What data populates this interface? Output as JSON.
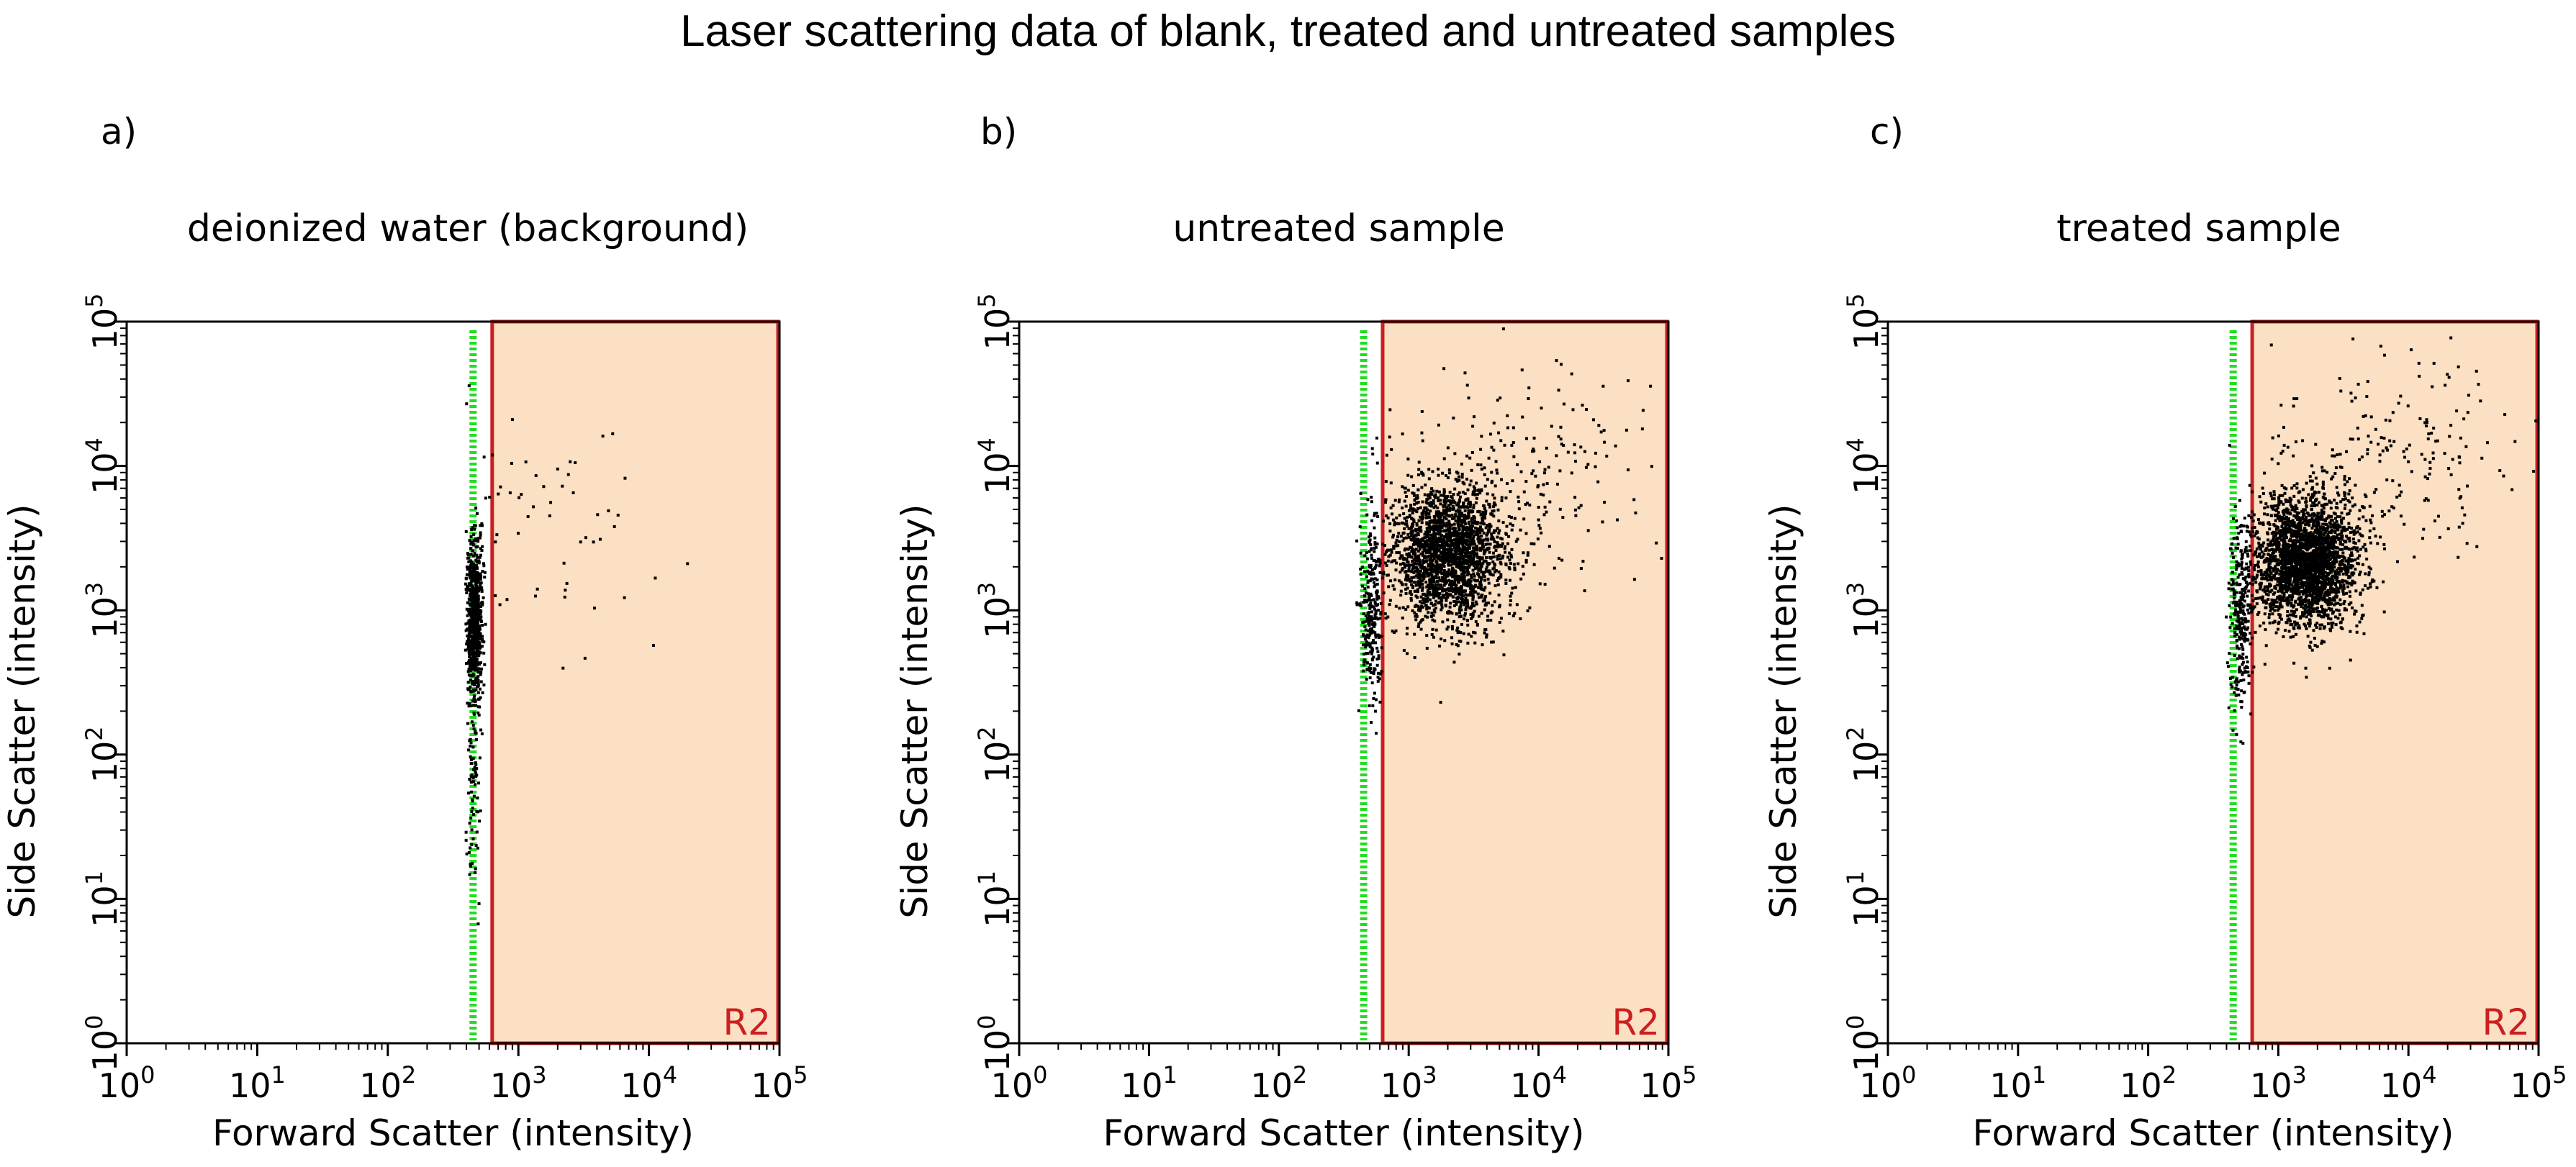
{
  "figure": {
    "title": "Laser scattering data of blank, treated and untreated samples"
  },
  "colors": {
    "gate_fill": "#fbe0c4",
    "gate_stroke": "#cc1f1f",
    "threshold_line": "#22dd22",
    "points": "#000000",
    "axes": "#000000"
  },
  "chart_data": [
    {
      "type": "scatter",
      "panel_label": "a)",
      "title": "deionized water (background)",
      "xlabel": "Forward Scatter (intensity)",
      "ylabel": "Side Scatter (intensity)",
      "x_scale": "log",
      "y_scale": "log",
      "xlim": [
        1,
        100000
      ],
      "ylim": [
        1,
        100000
      ],
      "x_ticks": [
        "10^0",
        "10^1",
        "10^2",
        "10^3",
        "10^4",
        "10^5"
      ],
      "y_ticks": [
        "10^0",
        "10^1",
        "10^2",
        "10^3",
        "10^4",
        "10^5"
      ],
      "grid": false,
      "threshold_x": 450,
      "gate": {
        "name": "R2",
        "x_range": [
          630,
          100000
        ],
        "y_range": [
          1,
          100000
        ]
      },
      "points_summary": "dense column at FSC ~400-600, SSC ~10-2000; sparse tail rising to FSC ~3e4, SSC ~4e4",
      "cluster": [
        {
          "n": 700,
          "x_mean": 2.65,
          "x_sd": 0.03,
          "y_mean": 2.95,
          "y_sd": 0.28
        },
        {
          "n": 80,
          "x_mean": 2.65,
          "x_sd": 0.03,
          "y_mean": 1.8,
          "y_sd": 0.35
        },
        {
          "n": 60,
          "x_mean": 3.2,
          "x_sd": 0.45,
          "y_mean": 3.6,
          "y_sd": 0.4
        }
      ]
    },
    {
      "type": "scatter",
      "panel_label": "b)",
      "title": "untreated sample",
      "xlabel": "Forward Scatter (intensity)",
      "ylabel": "Side Scatter (intensity)",
      "x_scale": "log",
      "y_scale": "log",
      "xlim": [
        1,
        100000
      ],
      "ylim": [
        1,
        100000
      ],
      "x_ticks": [
        "10^0",
        "10^1",
        "10^2",
        "10^3",
        "10^4",
        "10^5"
      ],
      "y_ticks": [
        "10^0",
        "10^1",
        "10^2",
        "10^3",
        "10^4",
        "10^5"
      ],
      "grid": false,
      "threshold_x": 450,
      "gate": {
        "name": "R2",
        "x_range": [
          630,
          100000
        ],
        "y_range": [
          1,
          100000
        ]
      },
      "points_summary": "main cluster centered near FSC ~2e3, SSC ~2.5e3; sparse points up to FSC ~1e5, SSC ~1e5",
      "cluster": [
        {
          "n": 2200,
          "x_mean": 3.3,
          "x_sd": 0.22,
          "y_mean": 3.4,
          "y_sd": 0.25
        },
        {
          "n": 250,
          "x_mean": 2.7,
          "x_sd": 0.04,
          "y_mean": 3.0,
          "y_sd": 0.3
        },
        {
          "n": 180,
          "x_mean": 3.9,
          "x_sd": 0.45,
          "y_mean": 4.0,
          "y_sd": 0.35
        }
      ]
    },
    {
      "type": "scatter",
      "panel_label": "c)",
      "title": "treated sample",
      "xlabel": "Forward Scatter (intensity)",
      "ylabel": "Side Scatter (intensity)",
      "x_scale": "log",
      "y_scale": "log",
      "xlim": [
        1,
        100000
      ],
      "ylim": [
        1,
        100000
      ],
      "x_ticks": [
        "10^0",
        "10^1",
        "10^2",
        "10^3",
        "10^4",
        "10^5"
      ],
      "y_ticks": [
        "10^0",
        "10^1",
        "10^2",
        "10^3",
        "10^4",
        "10^5"
      ],
      "grid": false,
      "threshold_x": 450,
      "gate": {
        "name": "R2",
        "x_range": [
          630,
          100000
        ],
        "y_range": [
          1,
          100000
        ]
      },
      "points_summary": "main cluster centered near FSC ~1.5e3, SSC ~2e3; sparse points up to FSC ~1e5, SSC ~1e5",
      "cluster": [
        {
          "n": 2600,
          "x_mean": 3.2,
          "x_sd": 0.2,
          "y_mean": 3.35,
          "y_sd": 0.22
        },
        {
          "n": 250,
          "x_mean": 2.7,
          "x_sd": 0.04,
          "y_mean": 2.9,
          "y_sd": 0.3
        },
        {
          "n": 200,
          "x_mean": 3.9,
          "x_sd": 0.45,
          "y_mean": 4.1,
          "y_sd": 0.35
        }
      ]
    }
  ]
}
